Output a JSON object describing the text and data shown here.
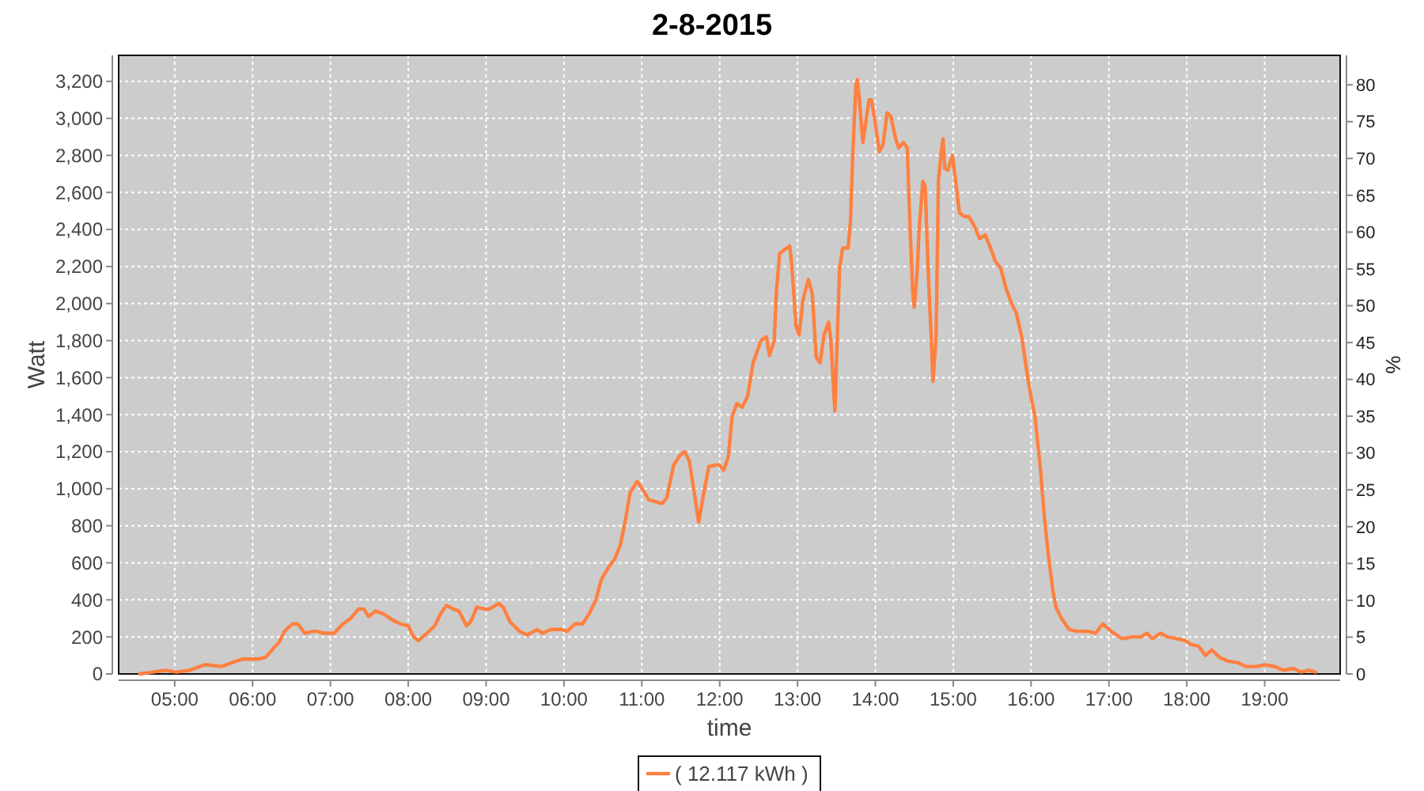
{
  "chart_data": {
    "type": "line",
    "title": "2-8-2015",
    "xlabel": "time",
    "ylabel": "Watt",
    "y2label": "%",
    "x": [
      4.55,
      4.88,
      5.02,
      5.19,
      5.39,
      5.6,
      5.73,
      5.87,
      6.07,
      6.17,
      6.27,
      6.34,
      6.41,
      6.51,
      6.58,
      6.67,
      6.78,
      6.82,
      6.92,
      7.05,
      7.16,
      7.26,
      7.36,
      7.43,
      7.49,
      7.58,
      7.7,
      7.8,
      7.9,
      8.0,
      8.07,
      8.13,
      8.24,
      8.34,
      8.41,
      8.49,
      8.58,
      8.65,
      8.75,
      8.8,
      8.88,
      8.99,
      9.04,
      9.16,
      9.22,
      9.31,
      9.43,
      9.53,
      9.65,
      9.73,
      9.83,
      9.97,
      10.04,
      10.14,
      10.24,
      10.33,
      10.41,
      10.48,
      10.58,
      10.65,
      10.72,
      10.78,
      10.85,
      10.94,
      11.02,
      11.09,
      11.26,
      11.32,
      11.41,
      11.49,
      11.55,
      11.61,
      11.68,
      11.73,
      11.78,
      11.86,
      11.99,
      12.05,
      12.11,
      12.16,
      12.22,
      12.29,
      12.36,
      12.43,
      12.53,
      12.6,
      12.64,
      12.7,
      12.73,
      12.77,
      12.83,
      12.9,
      12.93,
      12.98,
      13.02,
      13.07,
      13.14,
      13.19,
      13.24,
      13.29,
      13.34,
      13.4,
      13.43,
      13.46,
      13.48,
      13.54,
      13.58,
      13.65,
      13.68,
      13.71,
      13.75,
      13.77,
      13.8,
      13.84,
      13.87,
      13.92,
      13.95,
      14.0,
      14.05,
      14.1,
      14.15,
      14.2,
      14.26,
      14.3,
      14.36,
      14.41,
      14.44,
      14.48,
      14.5,
      14.54,
      14.56,
      14.61,
      14.64,
      14.68,
      14.72,
      14.74,
      14.78,
      14.81,
      14.85,
      14.87,
      14.89,
      14.93,
      14.99,
      15.04,
      15.08,
      15.14,
      15.2,
      15.27,
      15.34,
      15.41,
      15.48,
      15.54,
      15.61,
      15.68,
      15.75,
      15.81,
      15.88,
      15.95,
      15.98,
      16.05,
      16.12,
      16.17,
      16.22,
      16.28,
      16.32,
      16.39,
      16.49,
      16.59,
      16.73,
      16.83,
      16.92,
      17.03,
      17.17,
      17.3,
      17.41,
      17.49,
      17.56,
      17.66,
      17.75,
      17.88,
      17.98,
      18.05,
      18.15,
      18.24,
      18.32,
      18.42,
      18.52,
      18.66,
      18.76,
      18.9,
      19.0,
      19.13,
      19.24,
      19.37,
      19.47,
      19.57,
      19.65
    ],
    "series": [
      {
        "name": "( 12.117 kWh )",
        "color": "#ff8040",
        "values": [
          0,
          20,
          10,
          20,
          50,
          40,
          60,
          80,
          80,
          90,
          140,
          170,
          230,
          270,
          270,
          220,
          230,
          230,
          220,
          220,
          270,
          300,
          350,
          350,
          310,
          340,
          320,
          290,
          270,
          260,
          200,
          180,
          220,
          260,
          320,
          370,
          350,
          340,
          260,
          280,
          360,
          350,
          350,
          380,
          360,
          280,
          230,
          210,
          240,
          220,
          240,
          240,
          230,
          270,
          270,
          330,
          400,
          510,
          580,
          620,
          690,
          810,
          980,
          1040,
          990,
          940,
          920,
          950,
          1130,
          1180,
          1200,
          1150,
          960,
          820,
          940,
          1120,
          1130,
          1100,
          1170,
          1390,
          1460,
          1440,
          1500,
          1680,
          1800,
          1820,
          1720,
          1800,
          2070,
          2270,
          2290,
          2310,
          2190,
          1880,
          1830,
          2020,
          2130,
          2050,
          1710,
          1680,
          1830,
          1900,
          1790,
          1560,
          1420,
          2190,
          2300,
          2300,
          2440,
          2810,
          3180,
          3210,
          3070,
          2870,
          2960,
          3100,
          3100,
          2970,
          2820,
          2860,
          3030,
          3010,
          2890,
          2840,
          2870,
          2840,
          2470,
          2060,
          1980,
          2190,
          2390,
          2660,
          2630,
          2160,
          1790,
          1580,
          1820,
          2670,
          2830,
          2890,
          2730,
          2720,
          2800,
          2630,
          2490,
          2470,
          2470,
          2420,
          2350,
          2370,
          2300,
          2230,
          2190,
          2080,
          2000,
          1950,
          1820,
          1620,
          1540,
          1390,
          1110,
          850,
          650,
          450,
          360,
          300,
          240,
          230,
          230,
          220,
          270,
          230,
          190,
          200,
          200,
          220,
          190,
          220,
          200,
          190,
          180,
          160,
          150,
          100,
          130,
          90,
          70,
          60,
          40,
          40,
          50,
          40,
          20,
          30,
          10,
          20,
          10
        ]
      }
    ],
    "xlim": [
      4.28,
      19.97
    ],
    "xticks": [
      {
        "value": 5,
        "label": "05:00"
      },
      {
        "value": 6,
        "label": "06:00"
      },
      {
        "value": 7,
        "label": "07:00"
      },
      {
        "value": 8,
        "label": "08:00"
      },
      {
        "value": 9,
        "label": "09:00"
      },
      {
        "value": 10,
        "label": "10:00"
      },
      {
        "value": 11,
        "label": "11:00"
      },
      {
        "value": 12,
        "label": "12:00"
      },
      {
        "value": 13,
        "label": "13:00"
      },
      {
        "value": 14,
        "label": "14:00"
      },
      {
        "value": 15,
        "label": "15:00"
      },
      {
        "value": 16,
        "label": "16:00"
      },
      {
        "value": 17,
        "label": "17:00"
      },
      {
        "value": 18,
        "label": "18:00"
      },
      {
        "value": 19,
        "label": "19:00"
      }
    ],
    "ylim": [
      0,
      3340
    ],
    "yticks": [
      0,
      200,
      400,
      600,
      800,
      {
        "value": 1000,
        "label": "1,000"
      },
      {
        "value": 1200,
        "label": "1,200"
      },
      {
        "value": 1400,
        "label": "1,400"
      },
      {
        "value": 1600,
        "label": "1,600"
      },
      {
        "value": 1800,
        "label": "1,800"
      },
      {
        "value": 2000,
        "label": "2,000"
      },
      {
        "value": 2200,
        "label": "2,200"
      },
      {
        "value": 2400,
        "label": "2,400"
      },
      {
        "value": 2600,
        "label": "2,600"
      },
      {
        "value": 2800,
        "label": "2,800"
      },
      {
        "value": 3000,
        "label": "3,000"
      },
      {
        "value": 3200,
        "label": "3,200"
      }
    ],
    "y2lim": [
      0,
      84
    ],
    "y2ticks": [
      0,
      5,
      10,
      15,
      20,
      25,
      30,
      35,
      40,
      45,
      50,
      55,
      60,
      65,
      70,
      75,
      80
    ],
    "grid": true,
    "legend": "bottom"
  }
}
